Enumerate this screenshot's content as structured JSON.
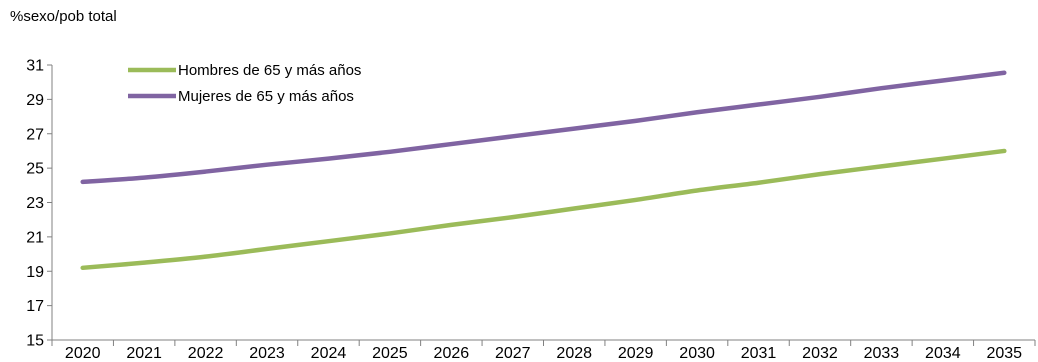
{
  "chart_data": {
    "type": "line",
    "ylabel": "%sexo/pob total",
    "xlabel": "",
    "categories": [
      "2020",
      "2021",
      "2022",
      "2023",
      "2024",
      "2025",
      "2026",
      "2027",
      "2028",
      "2029",
      "2030",
      "2031",
      "2032",
      "2033",
      "2034",
      "2035"
    ],
    "ylim": [
      15,
      31
    ],
    "yticks": [
      15,
      17,
      19,
      21,
      23,
      25,
      27,
      29,
      31
    ],
    "grid": false,
    "legend_position": "top-left",
    "series": [
      {
        "name": "Hombres de 65 y más años",
        "color": "#9bbb59",
        "values": [
          19.2,
          19.5,
          19.85,
          20.3,
          20.75,
          21.2,
          21.7,
          22.15,
          22.65,
          23.15,
          23.7,
          24.15,
          24.65,
          25.1,
          25.55,
          26.0
        ]
      },
      {
        "name": "Mujeres de 65 y más años",
        "color": "#8064a2",
        "values": [
          24.2,
          24.45,
          24.8,
          25.2,
          25.55,
          25.95,
          26.4,
          26.85,
          27.3,
          27.75,
          28.25,
          28.7,
          29.15,
          29.65,
          30.1,
          30.55
        ]
      }
    ]
  }
}
